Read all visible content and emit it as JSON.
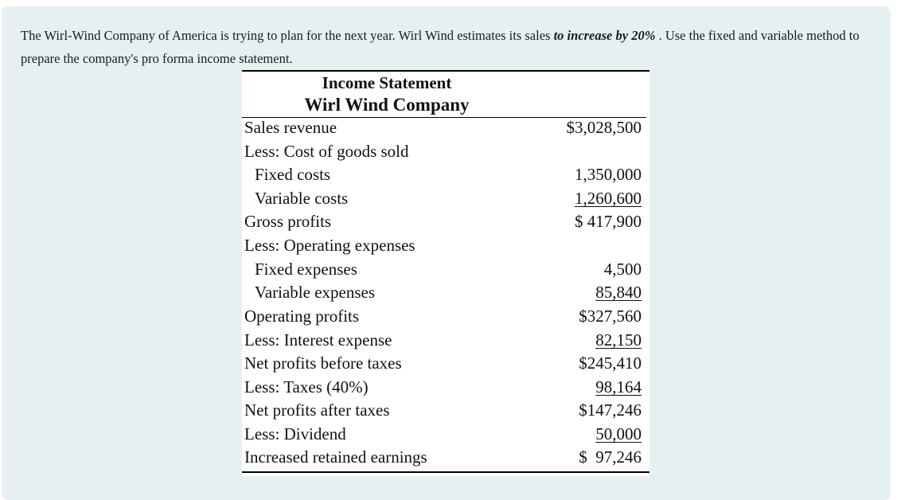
{
  "prompt": {
    "part1": "The Wirl-Wind Company of America is trying to plan for the next year. Wirl Wind estimates its sales ",
    "emphasis": "to increase by 20%",
    "part2": " . Use the fixed and variable method to prepare the company's pro forma income statement."
  },
  "statement": {
    "title": "Income Statement",
    "company": "Wirl Wind Company",
    "rows": [
      {
        "label": "Sales revenue",
        "amount": "$3,028,500"
      },
      {
        "label": "Less: Cost of goods sold",
        "amount": ""
      },
      {
        "label": "Fixed costs",
        "amount": "1,350,000"
      },
      {
        "label": "Variable costs",
        "amount": "1,260,600"
      },
      {
        "label": "Gross profits",
        "amount": "$ 417,900"
      },
      {
        "label": "Less: Operating expenses",
        "amount": ""
      },
      {
        "label": "Fixed expenses",
        "amount": "4,500"
      },
      {
        "label": "Variable expenses",
        "amount": "85,840"
      },
      {
        "label": "Operating profits",
        "amount": "$327,560"
      },
      {
        "label": "Less: Interest expense",
        "amount": "82,150"
      },
      {
        "label": "Net profits before taxes",
        "amount": "$245,410"
      },
      {
        "label": "Less: Taxes (40%)",
        "amount": "98,164"
      },
      {
        "label": "Net profits after taxes",
        "amount": "$147,246"
      },
      {
        "label": "Less: Dividend",
        "amount": "50,000"
      },
      {
        "label": "Increased retained earnings",
        "amount": "$  97,246"
      }
    ]
  }
}
